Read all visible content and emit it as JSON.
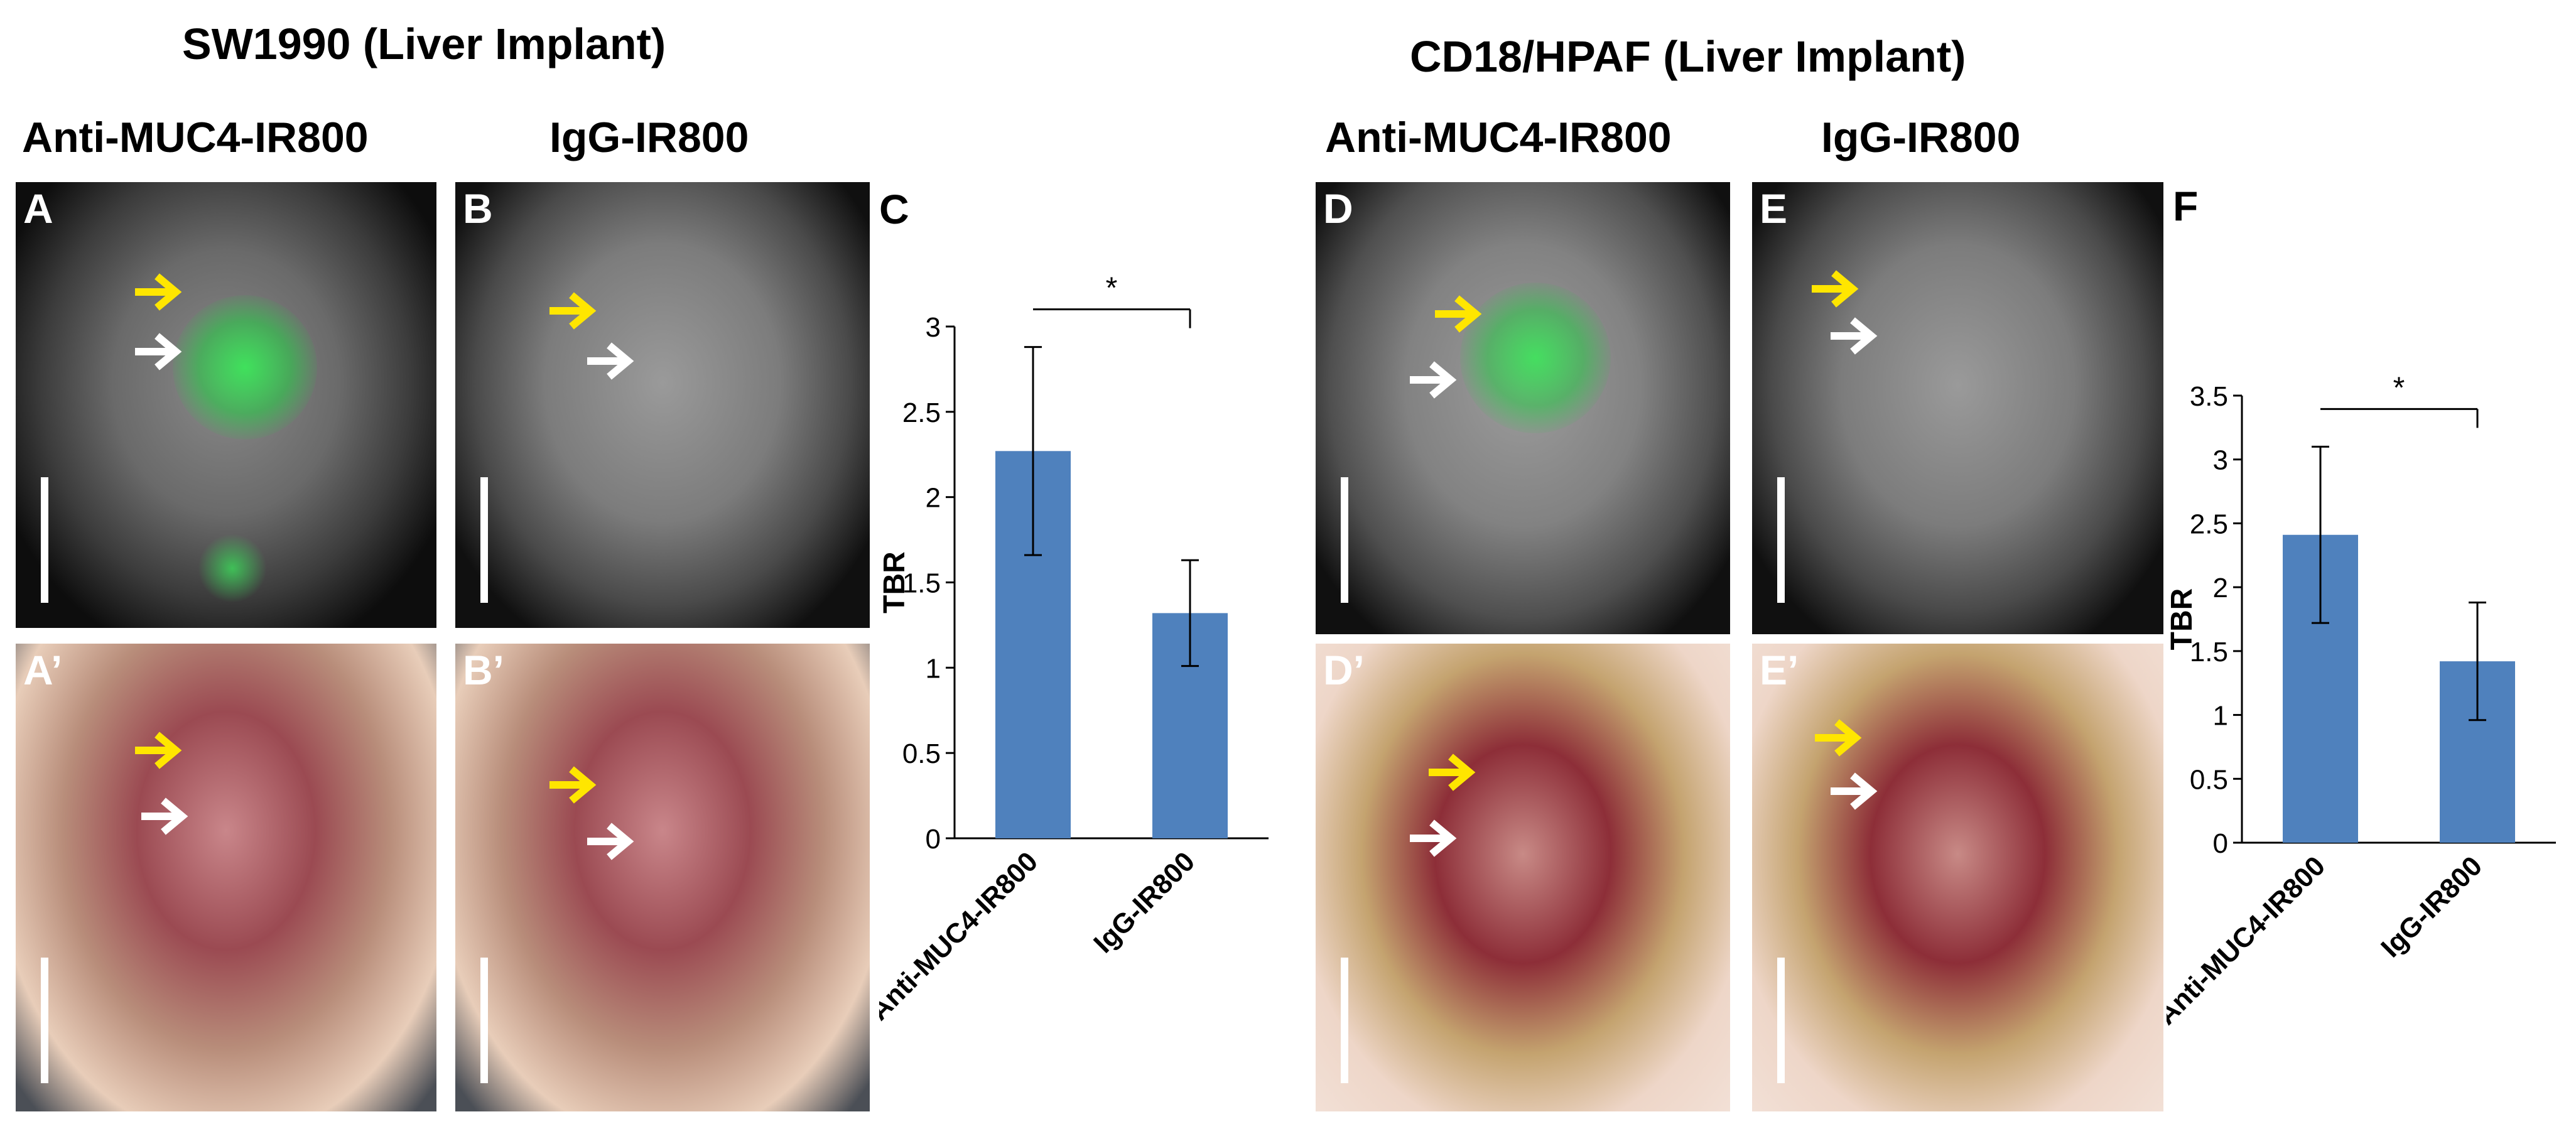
{
  "groups": [
    {
      "title": "SW1990 (Liver Implant)",
      "col1": "Anti-MUC4-IR800",
      "col2": "IgG-IR800"
    },
    {
      "title": "CD18/HPAF (Liver Implant)",
      "col1": "Anti-MUC4-IR800",
      "col2": "IgG-IR800"
    }
  ],
  "panels": {
    "A": "A",
    "B": "B",
    "A_prime": "A’",
    "B_prime": "B’",
    "D": "D",
    "E": "E",
    "D_prime": "D’",
    "E_prime": "E’",
    "C": "C",
    "F": "F"
  },
  "colors": {
    "bar": "#4F81BD",
    "yellow_arrow": "#FFE600",
    "white_arrow": "#FFFFFF",
    "fluorescence": "#33CC55"
  },
  "chart_data": [
    {
      "panel": "C",
      "type": "bar",
      "categories": [
        "Anti-MUC4-IR800",
        "IgG-IR800"
      ],
      "values": [
        2.27,
        1.32
      ],
      "error": [
        0.61,
        0.31
      ],
      "ylabel": "TBR",
      "ylim": [
        0,
        3
      ],
      "yticks": [
        "0",
        "0.5",
        "1",
        "1.5",
        "2",
        "2.5",
        "3"
      ],
      "significance": "*"
    },
    {
      "panel": "F",
      "type": "bar",
      "categories": [
        "Anti-MUC4-IR800",
        "IgG-IR800"
      ],
      "values": [
        2.41,
        1.42
      ],
      "error": [
        0.69,
        0.46
      ],
      "ylabel": "TBR",
      "ylim": [
        0,
        3.5
      ],
      "yticks": [
        "0",
        "0.5",
        "1",
        "1.5",
        "2",
        "2.5",
        "3",
        "3.5"
      ],
      "significance": "*"
    }
  ]
}
